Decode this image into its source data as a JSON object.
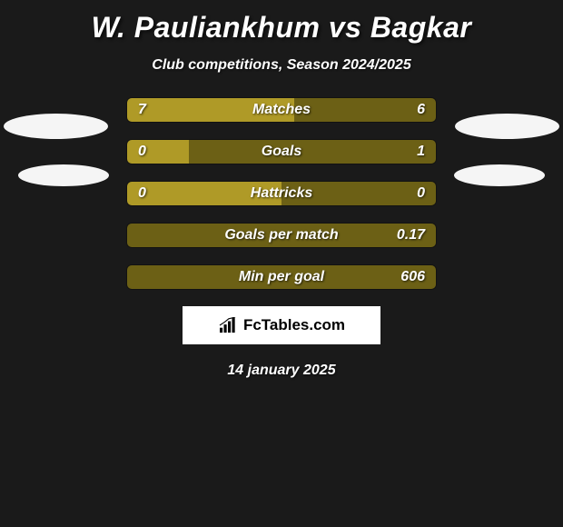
{
  "title": "W. Pauliankhum vs Bagkar",
  "subtitle": "Club competitions, Season 2024/2025",
  "colors": {
    "left_bar": "#af9a27",
    "right_bar": "#6c6015",
    "background": "#1a1a1a",
    "ellipse": "#f5f5f5",
    "text": "#ffffff"
  },
  "stats": [
    {
      "label": "Matches",
      "left_value": "7",
      "right_value": "6",
      "left_width": 54,
      "right_width": 46
    },
    {
      "label": "Goals",
      "left_value": "0",
      "right_value": "1",
      "left_width": 20,
      "right_width": 80
    },
    {
      "label": "Hattricks",
      "left_value": "0",
      "right_value": "0",
      "left_width": 50,
      "right_width": 50
    },
    {
      "label": "Goals per match",
      "left_value": "",
      "right_value": "0.17",
      "left_width": 0,
      "right_width": 100
    },
    {
      "label": "Min per goal",
      "left_value": "",
      "right_value": "606",
      "left_width": 0,
      "right_width": 100
    }
  ],
  "footer": {
    "brand": "FcTables.com",
    "date": "14 january 2025"
  }
}
